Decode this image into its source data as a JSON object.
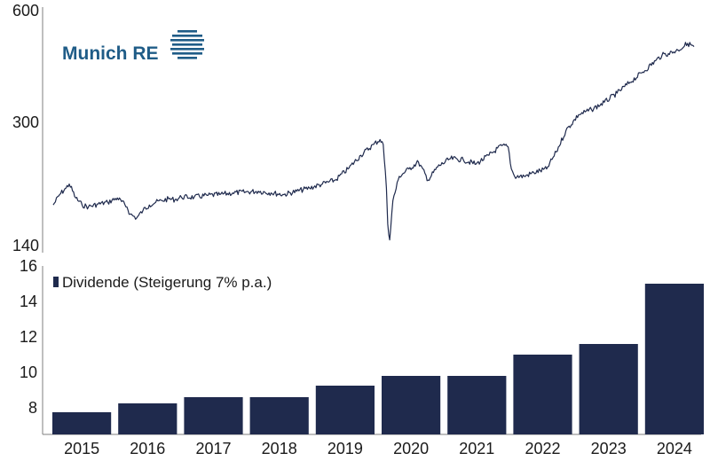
{
  "logo": {
    "text": "Munich RE",
    "color": "#1f5c87"
  },
  "colors": {
    "series": "#1f2a4d",
    "axis": "#7f7f7f"
  },
  "chart_data": [
    {
      "type": "line",
      "scale": "log",
      "ylim": [
        140,
        600
      ],
      "yticks": [
        "600",
        "300",
        "140"
      ],
      "xlim": [
        2015.0,
        2025.0
      ],
      "series": [
        {
          "x": [
            2015.0,
            2015.1,
            2015.2,
            2015.25,
            2015.35,
            2015.45,
            2015.55,
            2015.7,
            2015.85,
            2016.0,
            2016.15,
            2016.2,
            2016.3,
            2016.4,
            2016.5,
            2016.6,
            2016.7,
            2016.8,
            2016.9,
            2017.0,
            2017.2,
            2017.4,
            2017.6,
            2017.8,
            2018.0,
            2018.2,
            2018.4,
            2018.6,
            2018.8,
            2019.0,
            2019.2,
            2019.4,
            2019.6,
            2019.8,
            2020.0,
            2020.1,
            2020.15,
            2020.2,
            2020.22,
            2020.25,
            2020.3,
            2020.4,
            2020.55,
            2020.7,
            2020.85,
            2021.0,
            2021.2,
            2021.4,
            2021.6,
            2021.8,
            2022.0,
            2022.1,
            2022.15,
            2022.2,
            2022.35,
            2022.5,
            2022.7,
            2022.85,
            2023.0,
            2023.2,
            2023.4,
            2023.6,
            2023.8,
            2024.0,
            2024.2,
            2024.4,
            2024.5,
            2024.6,
            2024.75,
            2024.9,
            2025.0
          ],
          "y": [
            180,
            192,
            200,
            205,
            188,
            180,
            178,
            181,
            183,
            188,
            178,
            170,
            166,
            174,
            180,
            183,
            185,
            187,
            186,
            189,
            189,
            191,
            192,
            194,
            195,
            196,
            194,
            192,
            196,
            200,
            205,
            210,
            225,
            245,
            262,
            270,
            262,
            200,
            160,
            145,
            185,
            215,
            225,
            235,
            210,
            228,
            240,
            238,
            232,
            245,
            260,
            258,
            225,
            215,
            215,
            220,
            225,
            250,
            285,
            315,
            325,
            340,
            360,
            385,
            410,
            440,
            455,
            460,
            470,
            490,
            480
          ]
        }
      ]
    },
    {
      "type": "bar",
      "categories": [
        "2015",
        "2016",
        "2017",
        "2018",
        "2019",
        "2020",
        "2021",
        "2022",
        "2023",
        "2024"
      ],
      "series": [
        {
          "name": "Dividende (Steigerung 7% p.a.)",
          "values": [
            7.75,
            8.25,
            8.6,
            8.6,
            9.25,
            9.8,
            9.8,
            11.0,
            11.6,
            15.0
          ]
        }
      ],
      "ylim": [
        6.5,
        16
      ],
      "yticks": [
        "16",
        "14",
        "12",
        "10",
        "8"
      ],
      "legend": "top-left"
    }
  ]
}
